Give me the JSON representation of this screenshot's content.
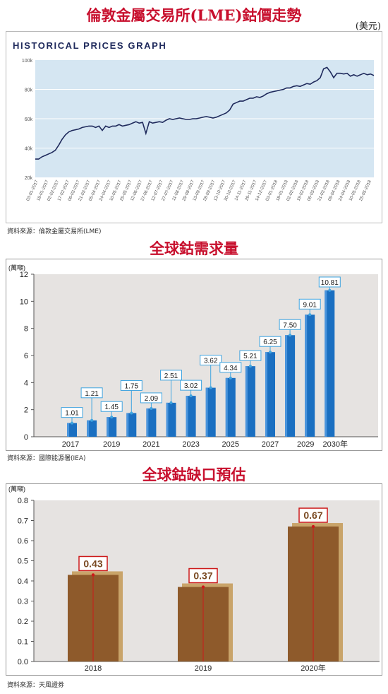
{
  "section1": {
    "title": "倫敦金屬交易所(LME)鈷價走勢",
    "unit": "(美元)",
    "source": "資料來源：倫敦金屬交易所(LME)"
  },
  "section2": {
    "title": "全球鈷需求量",
    "source": "資料來源：國際能源署(IEA)"
  },
  "section3": {
    "title": "全球鈷缺口預估",
    "source": "資料來源：天風證券"
  },
  "chart_data": [
    {
      "type": "line",
      "title": "HISTORICAL PRICES GRAPH",
      "yticks": [
        "20k",
        "40k",
        "60k",
        "80k",
        "100k"
      ],
      "ylim": [
        20000,
        100000
      ],
      "grid": true,
      "x_labels": [
        "03-01-2017",
        "18-01-2017",
        "02-02-2017",
        "17-02-2017",
        "06-03-2017",
        "21-03-2017",
        "05-04-2017",
        "24-04-2017",
        "10-05-2017",
        "25-05-2017",
        "12-06-2017",
        "27-06-2017",
        "12-07-2017",
        "27-07-2017",
        "11-08-2017",
        "29-08-2017",
        "13-09-2017",
        "28-09-2017",
        "13-10-2017",
        "30-10-2017",
        "14-11-2017",
        "29-11-2017",
        "14-12-2017",
        "03-01-2018",
        "18-01-2018",
        "02-02-2018",
        "19-02-2018",
        "06-03-2018",
        "21-03-2018",
        "09-04-2018",
        "24-04-2018",
        "10-05-2018",
        "25-05-2018"
      ],
      "series": [
        {
          "color": "#1f2a5c",
          "values": [
            32500,
            32500,
            34000,
            35000,
            36000,
            37000,
            38500,
            42000,
            46000,
            49000,
            51000,
            52000,
            52500,
            53000,
            54000,
            54500,
            55000,
            55000,
            54000,
            55000,
            52000,
            55000,
            54000,
            55000,
            55000,
            56000,
            55000,
            55500,
            56000,
            57000,
            58000,
            57000,
            57500,
            50000,
            58000,
            57000,
            57500,
            58000,
            57500,
            59000,
            60000,
            59500,
            60000,
            60500,
            60000,
            59500,
            59500,
            60000,
            60000,
            60500,
            61000,
            61500,
            61000,
            60500,
            61000,
            62000,
            63000,
            64000,
            66000,
            70000,
            71000,
            72000,
            72000,
            73000,
            74000,
            74000,
            75000,
            74500,
            75500,
            77000,
            78000,
            78500,
            79000,
            79500,
            80000,
            81000,
            81000,
            82000,
            82500,
            82000,
            83000,
            84000,
            83500,
            85000,
            86000,
            88000,
            94000,
            95000,
            92000,
            88000,
            91000,
            91000,
            90500,
            91000,
            89000,
            90000,
            89000,
            90000,
            91000,
            90000,
            90500,
            89500
          ]
        }
      ]
    },
    {
      "type": "bar",
      "ylabel": "(萬噸)",
      "yticks": [
        0,
        2,
        4,
        6,
        8,
        10,
        12
      ],
      "ylim": [
        0,
        12
      ],
      "x_labels": [
        "2017",
        "2019",
        "2021",
        "2023",
        "2025",
        "2027",
        "2029",
        "2030年"
      ],
      "categories": [
        "2017",
        "2018",
        "2019",
        "2020",
        "2021",
        "2022",
        "2023",
        "2024",
        "2025",
        "2026",
        "2027",
        "2028",
        "2029",
        "2030"
      ],
      "values": [
        1.01,
        1.21,
        1.45,
        1.75,
        2.09,
        2.51,
        3.02,
        3.62,
        4.34,
        5.21,
        6.25,
        7.5,
        9.01,
        10.81
      ],
      "value_labels": [
        "1.01",
        "1.21",
        "1.45",
        "1.75",
        "2.09",
        "2.51",
        "3.02",
        "3.62",
        "4.34",
        "5.21",
        "6.25",
        "7.50",
        "9.01",
        "10.81"
      ],
      "color": "#1a6fc1"
    },
    {
      "type": "bar",
      "ylabel": "(萬噸)",
      "yticks": [
        "0.0",
        "0.1",
        "0.2",
        "0.3",
        "0.4",
        "0.5",
        "0.6",
        "0.7",
        "0.8"
      ],
      "ylim": [
        0,
        0.8
      ],
      "categories": [
        "2018",
        "2019",
        "2020年"
      ],
      "values": [
        0.43,
        0.37,
        0.67
      ],
      "value_labels": [
        "0.43",
        "0.37",
        "0.67"
      ],
      "color": "#8e5a2b"
    }
  ]
}
